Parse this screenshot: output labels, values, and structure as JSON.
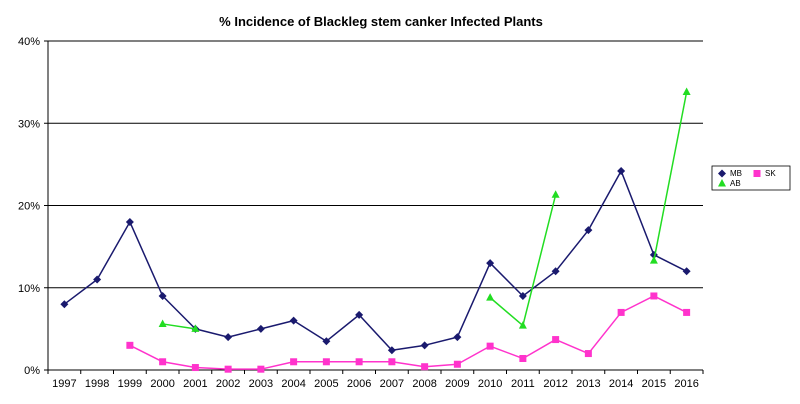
{
  "chart_data": {
    "type": "line",
    "title": "% Incidence of Blackleg stem canker Infected Plants",
    "xlabel": "",
    "ylabel": "",
    "categories": [
      "1997",
      "1998",
      "1999",
      "2000",
      "2001",
      "2002",
      "2003",
      "2004",
      "2005",
      "2006",
      "2007",
      "2008",
      "2009",
      "2010",
      "2011",
      "2012",
      "2013",
      "2014",
      "2015",
      "2016"
    ],
    "ylim": [
      0,
      40
    ],
    "yticks": [
      0,
      10,
      20,
      30,
      40
    ],
    "ytick_labels": [
      "0%",
      "10%",
      "20%",
      "30%",
      "40%"
    ],
    "grid": "horizontal major lines",
    "legend_position": "right",
    "series": [
      {
        "name": "MB",
        "color": "#1a1a6e",
        "marker": "diamond",
        "values": [
          8,
          11,
          18,
          9,
          5,
          4,
          5,
          6,
          3.5,
          6.7,
          2.4,
          3,
          4,
          13,
          9,
          12,
          17,
          24.2,
          14,
          12
        ]
      },
      {
        "name": "SK",
        "color": "#ff33cc",
        "marker": "square",
        "values": [
          null,
          null,
          3,
          1,
          0.3,
          0.1,
          0.1,
          1,
          1,
          1,
          1,
          0.4,
          0.7,
          2.9,
          1.4,
          3.7,
          2,
          7,
          9,
          7
        ]
      },
      {
        "name": "AB",
        "color": "#22dd22",
        "marker": "triangle",
        "values": [
          null,
          null,
          null,
          5.6,
          5,
          null,
          null,
          null,
          null,
          null,
          null,
          null,
          null,
          8.8,
          5.4,
          21.3,
          null,
          null,
          13.3,
          33.8
        ]
      }
    ]
  }
}
